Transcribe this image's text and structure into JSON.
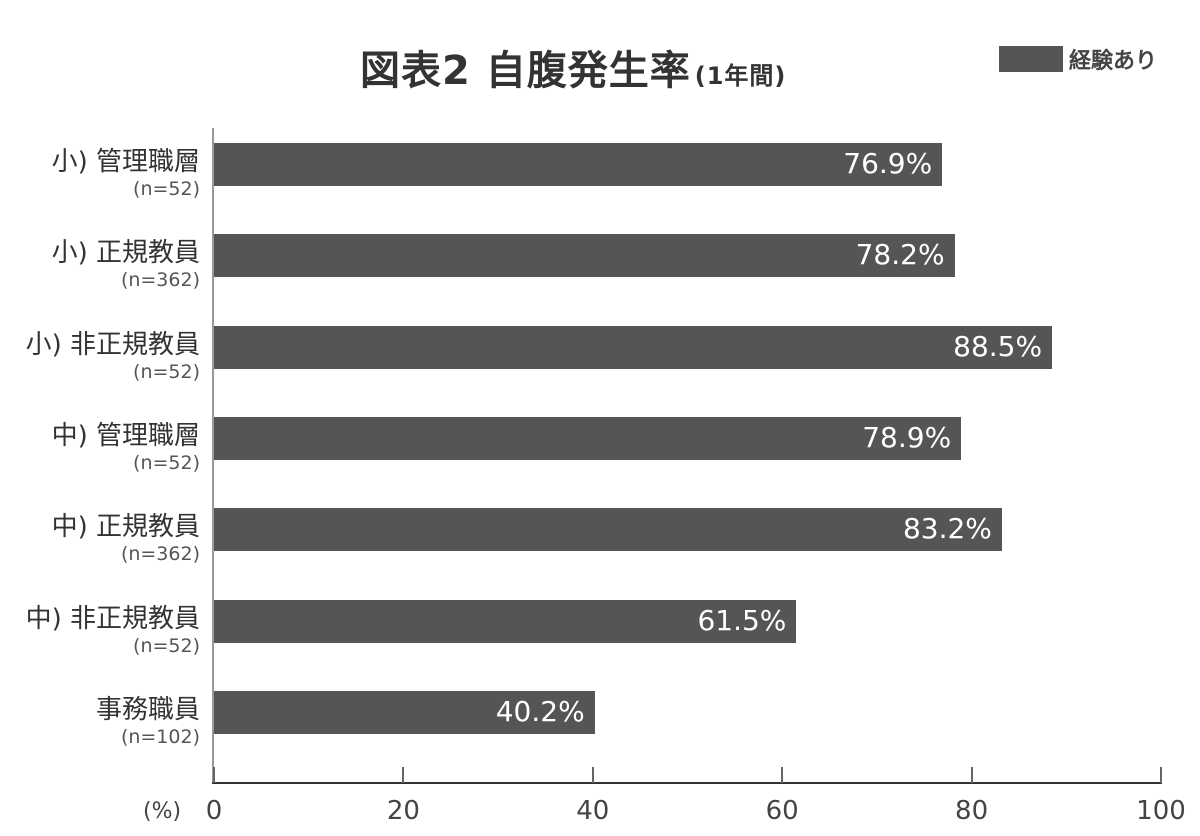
{
  "chart_data": {
    "type": "bar",
    "orientation": "horizontal",
    "title": "図表2 自腹発生率",
    "subtitle": "(1年間)",
    "legend": {
      "entries": [
        "経験あり"
      ],
      "position": "top-right"
    },
    "categories": [
      "小) 管理職層",
      "小) 正規教員",
      "小) 非正規教員",
      "中) 管理職層",
      "中) 正規教員",
      "中) 非正規教員",
      "事務職員"
    ],
    "sample_sizes": [
      "(n=52)",
      "(n=362)",
      "(n=52)",
      "(n=52)",
      "(n=362)",
      "(n=52)",
      "(n=102)"
    ],
    "series": [
      {
        "name": "経験あり",
        "values": [
          76.9,
          78.2,
          88.5,
          78.9,
          83.2,
          61.5,
          40.2
        ]
      }
    ],
    "value_labels": [
      "76.9%",
      "78.2%",
      "88.5%",
      "78.9%",
      "83.2%",
      "61.5%",
      "40.2%"
    ],
    "xlabel": "(%)",
    "ylabel": "",
    "xlim": [
      0,
      100
    ],
    "x_ticks": [
      "0",
      "20",
      "40",
      "60",
      "80",
      "100"
    ],
    "grid": false,
    "bar_color": "#555555"
  }
}
